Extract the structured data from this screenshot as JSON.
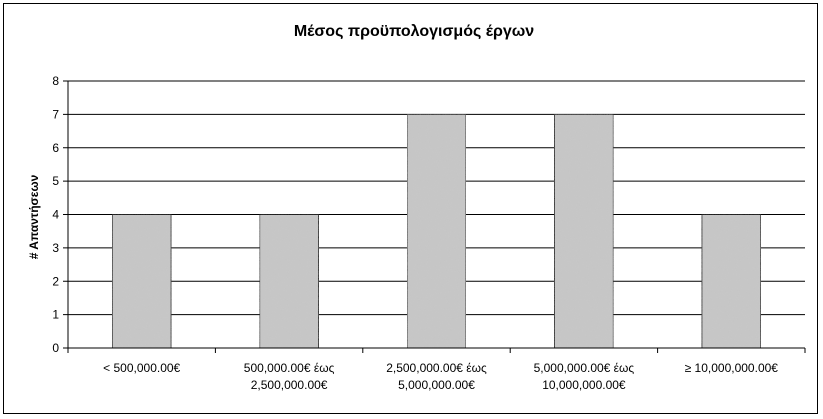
{
  "chart_data": {
    "type": "bar",
    "title": "Μέσος προϋπολογισμός έργων",
    "xlabel": "",
    "ylabel": "# Απαντήσεων",
    "categories": [
      [
        "< 500,000.00€"
      ],
      [
        "500,000.00€ έως",
        "2,500,000.00€"
      ],
      [
        "2,500,000.00€ έως",
        "5,000,000.00€"
      ],
      [
        "5,000,000.00€ έως",
        "10,000,000.00€"
      ],
      [
        "≥ 10,000,000.00€"
      ]
    ],
    "values": [
      4,
      4,
      7,
      7,
      4
    ],
    "ylim": [
      0,
      8
    ],
    "yticks": [
      "0",
      "1",
      "2",
      "3",
      "4",
      "5",
      "6",
      "7",
      "8"
    ],
    "grid": true,
    "legend": "none",
    "colors": {
      "bar": "#c8c8c8",
      "bar_edge": "#000000",
      "grid": "#000000"
    }
  }
}
